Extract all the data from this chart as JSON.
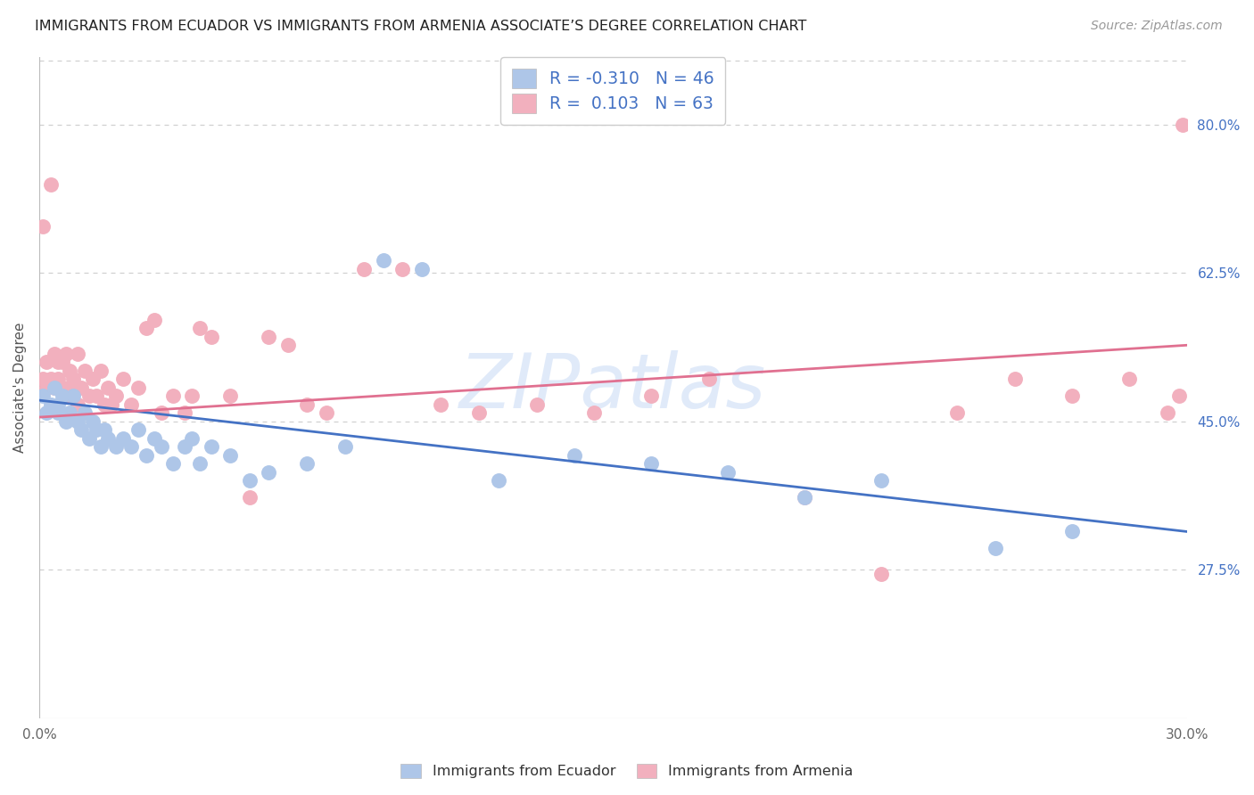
{
  "title": "IMMIGRANTS FROM ECUADOR VS IMMIGRANTS FROM ARMENIA ASSOCIATE’S DEGREE CORRELATION CHART",
  "source": "Source: ZipAtlas.com",
  "ylabel": "Associate's Degree",
  "xlim": [
    0.0,
    0.3
  ],
  "ylim": [
    0.1,
    0.88
  ],
  "ytick_positions_right": [
    0.8,
    0.625,
    0.45,
    0.275
  ],
  "ytick_labels_right": [
    "80.0%",
    "62.5%",
    "45.0%",
    "27.5%"
  ],
  "xtick_positions": [
    0.0,
    0.05,
    0.1,
    0.15,
    0.2,
    0.25,
    0.3
  ],
  "xtick_labels": [
    "0.0%",
    "",
    "",
    "",
    "",
    "",
    "30.0%"
  ],
  "grid_color": "#d0d0d0",
  "background_color": "#ffffff",
  "blue_scatter_color": "#aec6e8",
  "pink_scatter_color": "#f2b0be",
  "blue_line_color": "#4472c4",
  "pink_line_color": "#e07090",
  "accent_color": "#4472c4",
  "R_blue": -0.31,
  "N_blue": 46,
  "R_pink": 0.103,
  "N_pink": 63,
  "watermark": "ZIPatlas",
  "legend_label_blue": "Immigrants from Ecuador",
  "legend_label_pink": "Immigrants from Armenia",
  "blue_points_x": [
    0.001,
    0.002,
    0.003,
    0.004,
    0.005,
    0.005,
    0.006,
    0.007,
    0.008,
    0.009,
    0.01,
    0.011,
    0.012,
    0.013,
    0.014,
    0.015,
    0.016,
    0.017,
    0.018,
    0.02,
    0.022,
    0.024,
    0.026,
    0.028,
    0.03,
    0.032,
    0.035,
    0.038,
    0.04,
    0.042,
    0.045,
    0.05,
    0.055,
    0.06,
    0.07,
    0.08,
    0.09,
    0.1,
    0.12,
    0.14,
    0.16,
    0.18,
    0.2,
    0.22,
    0.25,
    0.27
  ],
  "blue_points_y": [
    0.48,
    0.46,
    0.47,
    0.49,
    0.46,
    0.47,
    0.48,
    0.45,
    0.46,
    0.48,
    0.45,
    0.44,
    0.46,
    0.43,
    0.45,
    0.44,
    0.42,
    0.44,
    0.43,
    0.42,
    0.43,
    0.42,
    0.44,
    0.41,
    0.43,
    0.42,
    0.4,
    0.42,
    0.43,
    0.4,
    0.42,
    0.41,
    0.38,
    0.39,
    0.4,
    0.42,
    0.64,
    0.63,
    0.38,
    0.41,
    0.4,
    0.39,
    0.36,
    0.38,
    0.3,
    0.32
  ],
  "pink_points_x": [
    0.001,
    0.001,
    0.002,
    0.002,
    0.003,
    0.003,
    0.004,
    0.004,
    0.005,
    0.005,
    0.006,
    0.006,
    0.007,
    0.007,
    0.008,
    0.008,
    0.009,
    0.01,
    0.01,
    0.011,
    0.012,
    0.013,
    0.014,
    0.015,
    0.016,
    0.017,
    0.018,
    0.019,
    0.02,
    0.022,
    0.024,
    0.026,
    0.028,
    0.03,
    0.032,
    0.035,
    0.038,
    0.04,
    0.042,
    0.045,
    0.05,
    0.055,
    0.06,
    0.065,
    0.07,
    0.075,
    0.085,
    0.095,
    0.105,
    0.115,
    0.13,
    0.145,
    0.16,
    0.175,
    0.2,
    0.22,
    0.24,
    0.255,
    0.27,
    0.285,
    0.295,
    0.298,
    0.299
  ],
  "pink_points_y": [
    0.68,
    0.5,
    0.52,
    0.49,
    0.73,
    0.5,
    0.53,
    0.49,
    0.52,
    0.5,
    0.52,
    0.49,
    0.53,
    0.48,
    0.51,
    0.49,
    0.5,
    0.53,
    0.47,
    0.49,
    0.51,
    0.48,
    0.5,
    0.48,
    0.51,
    0.47,
    0.49,
    0.47,
    0.48,
    0.5,
    0.47,
    0.49,
    0.56,
    0.57,
    0.46,
    0.48,
    0.46,
    0.48,
    0.56,
    0.55,
    0.48,
    0.36,
    0.55,
    0.54,
    0.47,
    0.46,
    0.63,
    0.63,
    0.47,
    0.46,
    0.47,
    0.46,
    0.48,
    0.5,
    0.36,
    0.27,
    0.46,
    0.5,
    0.48,
    0.5,
    0.46,
    0.48,
    0.8
  ]
}
